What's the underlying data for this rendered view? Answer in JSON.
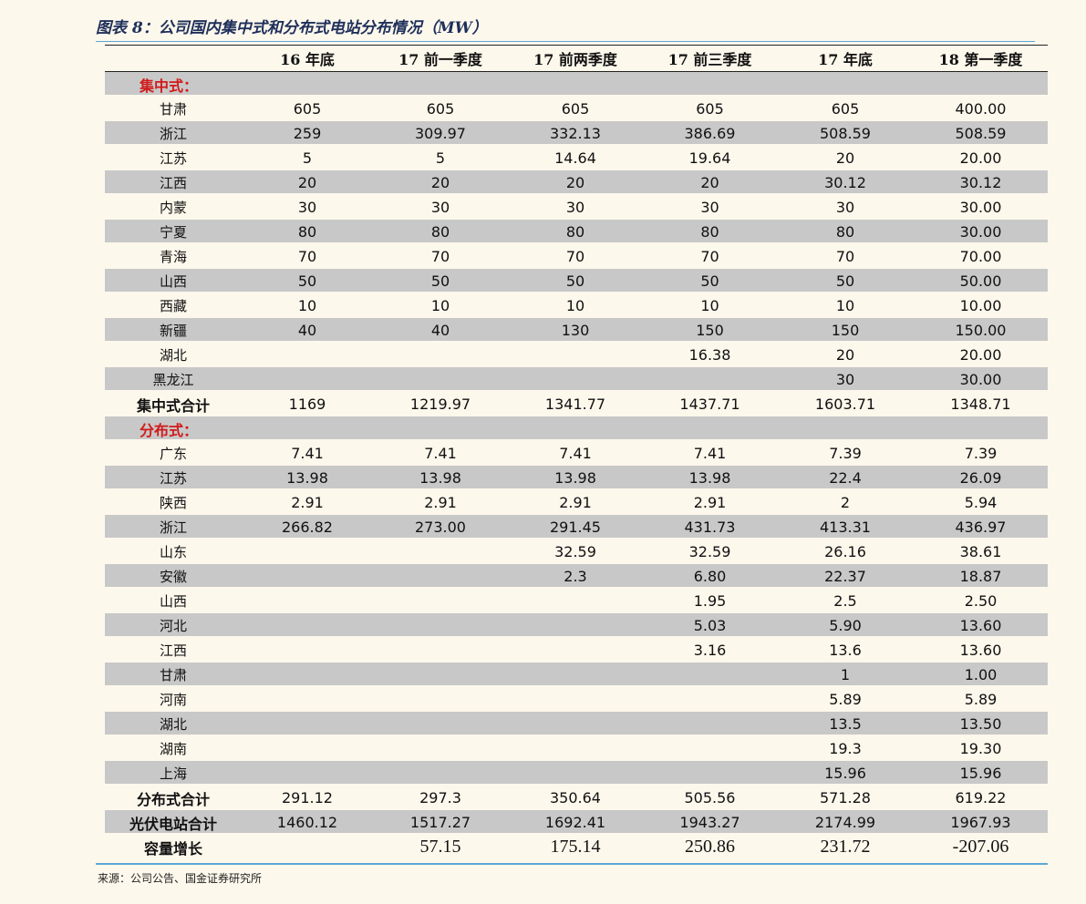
{
  "title": "图表 8：公司国内集中式和分布式电站分布情况（MW）",
  "headers": [
    "",
    "16 年底",
    "17 前一季度",
    "17 前两季度",
    "17 前三季度",
    "17 年底",
    "18 第一季度"
  ],
  "rows": [
    {
      "kind": "section",
      "label": "集中式："
    },
    {
      "kind": "data",
      "label": "甘肃",
      "values": [
        "605",
        "605",
        "605",
        "605",
        "605",
        "400.00"
      ]
    },
    {
      "kind": "data",
      "label": "浙江",
      "values": [
        "259",
        "309.97",
        "332.13",
        "386.69",
        "508.59",
        "508.59"
      ]
    },
    {
      "kind": "data",
      "label": "江苏",
      "values": [
        "5",
        "5",
        "14.64",
        "19.64",
        "20",
        "20.00"
      ]
    },
    {
      "kind": "data",
      "label": "江西",
      "values": [
        "20",
        "20",
        "20",
        "20",
        "30.12",
        "30.12"
      ]
    },
    {
      "kind": "data",
      "label": "内蒙",
      "values": [
        "30",
        "30",
        "30",
        "30",
        "30",
        "30.00"
      ]
    },
    {
      "kind": "data",
      "label": "宁夏",
      "values": [
        "80",
        "80",
        "80",
        "80",
        "80",
        "30.00"
      ]
    },
    {
      "kind": "data",
      "label": "青海",
      "values": [
        "70",
        "70",
        "70",
        "70",
        "70",
        "70.00"
      ]
    },
    {
      "kind": "data",
      "label": "山西",
      "values": [
        "50",
        "50",
        "50",
        "50",
        "50",
        "50.00"
      ]
    },
    {
      "kind": "data",
      "label": "西藏",
      "values": [
        "10",
        "10",
        "10",
        "10",
        "10",
        "10.00"
      ]
    },
    {
      "kind": "data",
      "label": "新疆",
      "values": [
        "40",
        "40",
        "130",
        "150",
        "150",
        "150.00"
      ]
    },
    {
      "kind": "data",
      "label": "湖北",
      "values": [
        "",
        "",
        "",
        "16.38",
        "20",
        "20.00"
      ]
    },
    {
      "kind": "data",
      "label": "黑龙江",
      "values": [
        "",
        "",
        "",
        "",
        "30",
        "30.00"
      ]
    },
    {
      "kind": "total",
      "label": "集中式合计",
      "values": [
        "1169",
        "1219.97",
        "1341.77",
        "1437.71",
        "1603.71",
        "1348.71"
      ]
    },
    {
      "kind": "section",
      "label": "分布式："
    },
    {
      "kind": "data",
      "label": "广东",
      "values": [
        "7.41",
        "7.41",
        "7.41",
        "7.41",
        "7.39",
        "7.39"
      ]
    },
    {
      "kind": "data",
      "label": "江苏",
      "values": [
        "13.98",
        "13.98",
        "13.98",
        "13.98",
        "22.4",
        "26.09"
      ]
    },
    {
      "kind": "data",
      "label": "陕西",
      "values": [
        "2.91",
        "2.91",
        "2.91",
        "2.91",
        "2",
        "5.94"
      ]
    },
    {
      "kind": "data",
      "label": "浙江",
      "values": [
        "266.82",
        "273.00",
        "291.45",
        "431.73",
        "413.31",
        "436.97"
      ]
    },
    {
      "kind": "data",
      "label": "山东",
      "values": [
        "",
        "",
        "32.59",
        "32.59",
        "26.16",
        "38.61"
      ]
    },
    {
      "kind": "data",
      "label": "安徽",
      "values": [
        "",
        "",
        "2.3",
        "6.80",
        "22.37",
        "18.87"
      ]
    },
    {
      "kind": "data",
      "label": "山西",
      "values": [
        "",
        "",
        "",
        "1.95",
        "2.5",
        "2.50"
      ]
    },
    {
      "kind": "data",
      "label": "河北",
      "values": [
        "",
        "",
        "",
        "5.03",
        "5.90",
        "13.60"
      ]
    },
    {
      "kind": "data",
      "label": "江西",
      "values": [
        "",
        "",
        "",
        "3.16",
        "13.6",
        "13.60"
      ]
    },
    {
      "kind": "data",
      "label": "甘肃",
      "values": [
        "",
        "",
        "",
        "",
        "1",
        "1.00"
      ]
    },
    {
      "kind": "data",
      "label": "河南",
      "values": [
        "",
        "",
        "",
        "",
        "5.89",
        "5.89"
      ]
    },
    {
      "kind": "data",
      "label": "湖北",
      "values": [
        "",
        "",
        "",
        "",
        "13.5",
        "13.50"
      ]
    },
    {
      "kind": "data",
      "label": "湖南",
      "values": [
        "",
        "",
        "",
        "",
        "19.3",
        "19.30"
      ]
    },
    {
      "kind": "data",
      "label": "上海",
      "values": [
        "",
        "",
        "",
        "",
        "15.96",
        "15.96"
      ]
    },
    {
      "kind": "total",
      "label": "分布式合计",
      "values": [
        "291.12",
        "297.3",
        "350.64",
        "505.56",
        "571.28",
        "619.22"
      ]
    },
    {
      "kind": "total",
      "label": "光伏电站合计",
      "values": [
        "1460.12",
        "1517.27",
        "1692.41",
        "1943.27",
        "2174.99",
        "1967.93"
      ]
    },
    {
      "kind": "total-serif",
      "label": "容量增长",
      "values": [
        "",
        "57.15",
        "175.14",
        "250.86",
        "231.72",
        "-207.06"
      ]
    }
  ],
  "source": "来源：公司公告、国金证券研究所"
}
